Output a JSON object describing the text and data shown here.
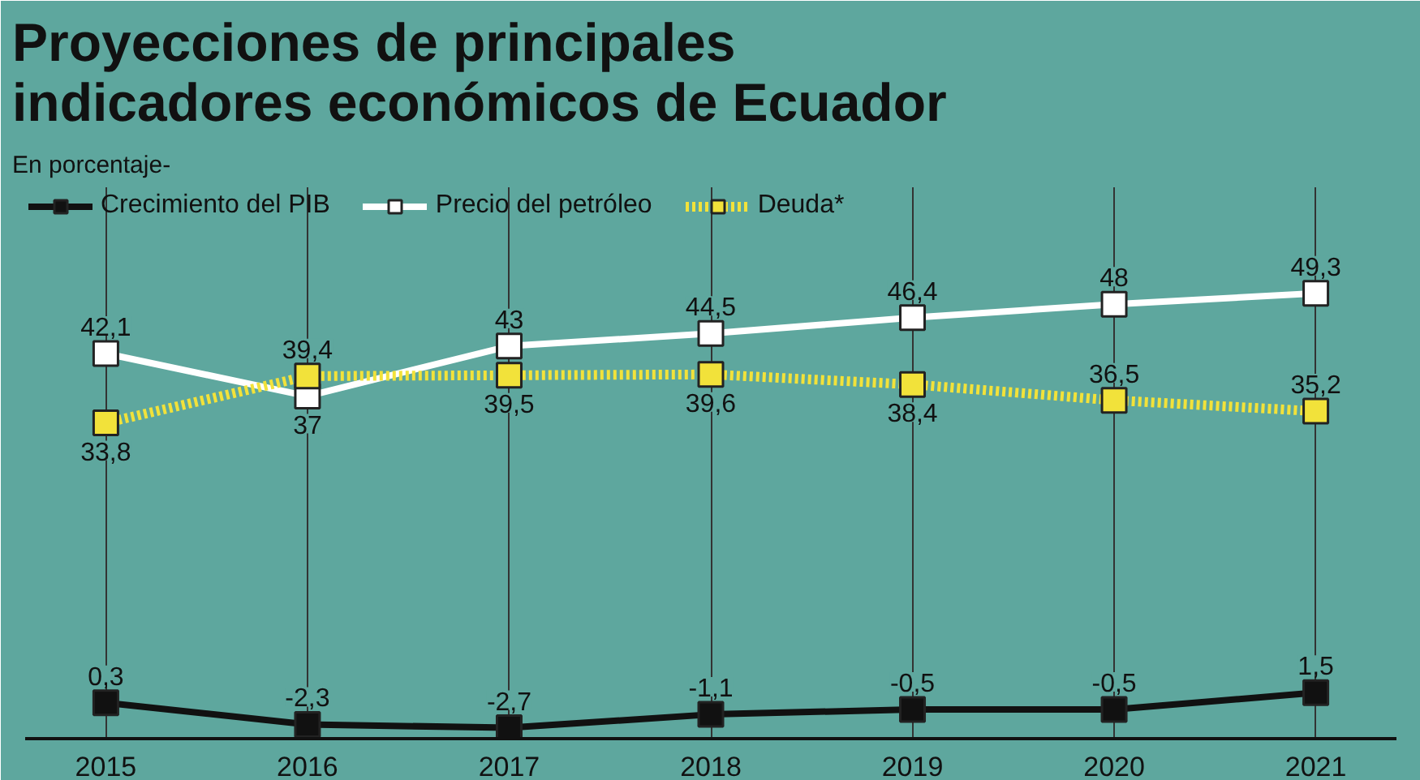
{
  "chart_data": {
    "type": "line",
    "title": "Proyecciones de principales indicadores económicos de Ecuador",
    "subtitle": "En porcentaje-",
    "categories": [
      "2015",
      "2016",
      "2017",
      "2018",
      "2019",
      "2020",
      "2021"
    ],
    "series": [
      {
        "name": "Crecimiento del PIB",
        "color": "#111111",
        "values": [
          0.3,
          -2.3,
          -2.7,
          -1.1,
          -0.5,
          -0.5,
          1.5
        ],
        "value_labels": [
          "0,3",
          "-2,3",
          "-2,7",
          "-1,1",
          "-0,5",
          "-0,5",
          "1,5"
        ],
        "line_style": "solid"
      },
      {
        "name": "Precio del petróleo",
        "color": "#ffffff",
        "values": [
          42.1,
          37,
          43,
          44.5,
          46.4,
          48,
          49.3
        ],
        "value_labels": [
          "42,1",
          "37",
          "43",
          "44,5",
          "46,4",
          "48",
          "49,3"
        ],
        "line_style": "solid"
      },
      {
        "name": "Deuda*",
        "color": "#f2e23a",
        "values": [
          33.8,
          39.4,
          39.5,
          39.6,
          38.4,
          36.5,
          35.2
        ],
        "value_labels": [
          "33,8",
          "39,4",
          "39,5",
          "39,6",
          "38,4",
          "36,5",
          "35,2"
        ],
        "line_style": "dotted"
      }
    ],
    "ylim": [
      -4,
      62
    ],
    "tick_labels": "x",
    "grid": "x",
    "legend": "top left",
    "marker": "square"
  }
}
